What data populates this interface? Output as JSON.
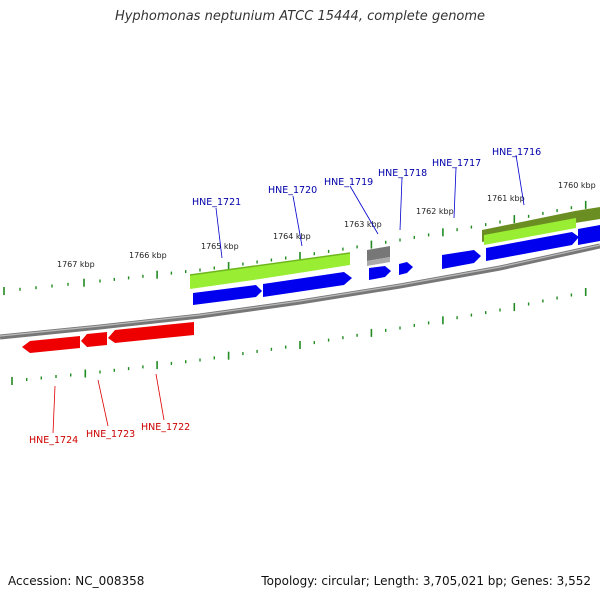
{
  "title": "Hyphomonas neptunium ATCC 15444, complete genome",
  "footer": {
    "accession": "Accession: NC_008358",
    "summary": "Topology: circular; Length: 3,705,021 bp; Genes: 3,552"
  },
  "colors": {
    "forward_cds": "#0000ee",
    "reverse_cds": "#ee0000",
    "gene_forward": "#99ee33",
    "gene_dark": "#6b8e23",
    "misc_feature": "#777777",
    "backbone": "#888888",
    "tick": "#228b22",
    "label_forward": "#0000aa",
    "label_reverse": "#cc0000"
  },
  "ruler_labels": [
    {
      "text": "1760 kbp"
    },
    {
      "text": "1761 kbp"
    },
    {
      "text": "1762 kbp"
    },
    {
      "text": "1763 kbp"
    },
    {
      "text": "1764 kbp"
    },
    {
      "text": "1765 kbp"
    },
    {
      "text": "1766 kbp"
    },
    {
      "text": "1767 kbp"
    }
  ],
  "genes_forward": [
    {
      "name": "HNE_1716"
    },
    {
      "name": "HNE_1717"
    },
    {
      "name": "HNE_1718"
    },
    {
      "name": "HNE_1719"
    },
    {
      "name": "HNE_1720"
    },
    {
      "name": "HNE_1721"
    }
  ],
  "genes_reverse": [
    {
      "name": "HNE_1722"
    },
    {
      "name": "HNE_1723"
    },
    {
      "name": "HNE_1724"
    }
  ]
}
